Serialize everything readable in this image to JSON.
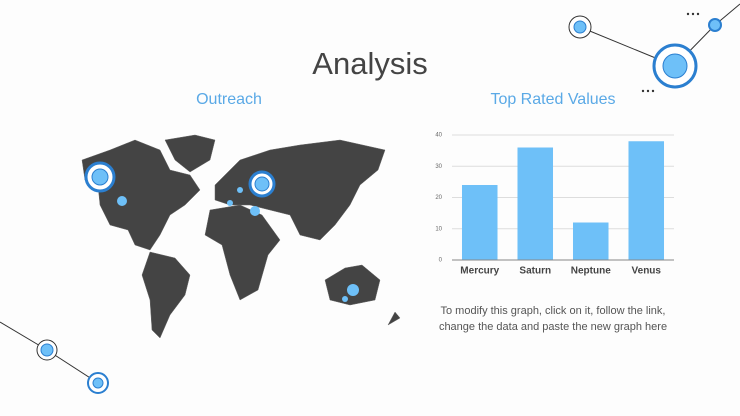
{
  "title": "Analysis",
  "map_title": "Outreach",
  "chart_data": {
    "type": "bar",
    "title": "Top Rated Values",
    "categories": [
      "Mercury",
      "Saturn",
      "Neptune",
      "Venus"
    ],
    "values": [
      24,
      36,
      12,
      38
    ],
    "color": "#6ec0f8",
    "ylim": [
      0,
      40
    ],
    "yticks": [
      0,
      10,
      20,
      30,
      40
    ],
    "grid": true
  },
  "caption": [
    "To modify this graph, click on it, follow the link,",
    "change the data and paste the new graph here"
  ]
}
